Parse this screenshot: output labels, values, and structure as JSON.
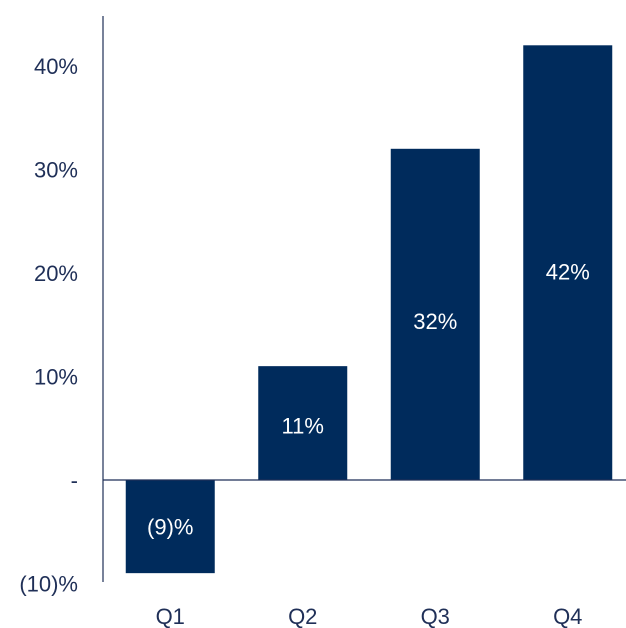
{
  "chart_data": {
    "type": "bar",
    "categories": [
      "Q1",
      "Q2",
      "Q3",
      "Q4"
    ],
    "values": [
      -9,
      11,
      32,
      42
    ],
    "value_labels": [
      "(9)%",
      "11%",
      "32%",
      "42%"
    ],
    "ylim": [
      -10,
      45
    ],
    "yticks": [
      -10,
      0,
      10,
      20,
      30,
      40
    ],
    "ytick_labels": [
      "(10)%",
      "-",
      "10%",
      "20%",
      "30%",
      "40%"
    ],
    "title": "",
    "xlabel": "",
    "ylabel": "",
    "grid": false,
    "colors": {
      "bar": "#002b5c",
      "axis": "#1f2f57",
      "text": "#1f2f57",
      "bar_text": "#ffffff"
    }
  }
}
